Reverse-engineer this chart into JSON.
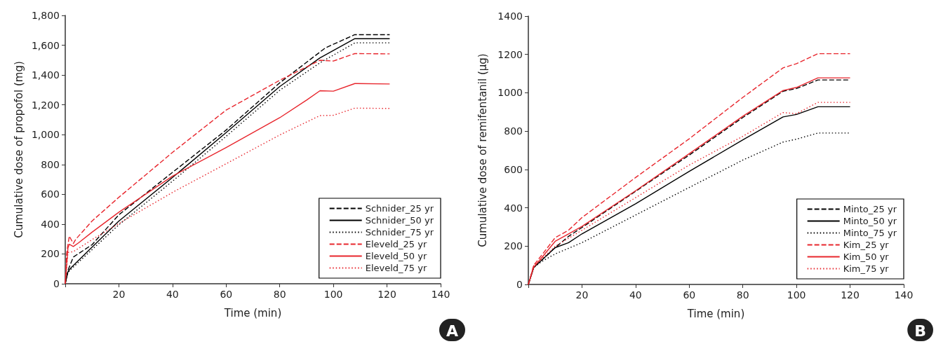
{
  "chart_data": [
    {
      "type": "line",
      "xlabel": "Time (min)",
      "ylabel": "Cumulative dose of propofol (mg)",
      "annotations": [
        "A"
      ],
      "xlim": [
        0,
        140
      ],
      "xticks": [
        {
          "value": 0,
          "label": null
        },
        20,
        40,
        60,
        80,
        100,
        120,
        140
      ],
      "ylim": [
        0,
        1800
      ],
      "yticks": [
        0,
        200,
        400,
        600,
        800,
        {
          "value": 1000,
          "label": "1,000"
        },
        {
          "value": 1200,
          "label": "1,200"
        },
        {
          "value": 1400,
          "label": "1,400"
        },
        {
          "value": 1600,
          "label": "1,600"
        },
        {
          "value": 1800,
          "label": "1,800"
        }
      ],
      "grid": false,
      "legend": "bottom right",
      "marker": "none",
      "series": [
        {
          "name": "Schnider_25 yr",
          "color": "#000000",
          "line_style": "dashed",
          "x": [
            0,
            1,
            3,
            10,
            20,
            40,
            60,
            80,
            97,
            108,
            121
          ],
          "values": [
            0,
            90,
            179,
            262,
            463,
            747,
            1031,
            1348,
            1582,
            1671,
            1671
          ]
        },
        {
          "name": "Schnider_50 yr",
          "color": "#000000",
          "line_style": "solid",
          "x": [
            0,
            1,
            2,
            10,
            20,
            40,
            60,
            80,
            95,
            108,
            121
          ],
          "values": [
            0,
            80,
            104,
            246,
            421,
            713,
            1014,
            1323,
            1515,
            1644,
            1644
          ]
        },
        {
          "name": "Schnider_75 yr",
          "color": "#000000",
          "line_style": "dotted",
          "x": [
            0,
            1,
            2,
            10,
            20,
            40,
            60,
            80,
            95,
            108,
            121
          ],
          "values": [
            0,
            75,
            95,
            229,
            396,
            688,
            989,
            1298,
            1482,
            1616,
            1616
          ]
        },
        {
          "name": "Eleveld_25 yr",
          "color": "#e8262d",
          "line_style": "dashed",
          "x": [
            0,
            0.5,
            1.5,
            3,
            4,
            10,
            20,
            40,
            60,
            80,
            95,
            100,
            108,
            121
          ],
          "values": [
            0,
            200,
            320,
            270,
            300,
            421,
            580,
            881,
            1165,
            1365,
            1499,
            1494,
            1544,
            1542
          ]
        },
        {
          "name": "Eleveld_50 yr",
          "color": "#e8262d",
          "line_style": "solid",
          "x": [
            0,
            1,
            1.5,
            3,
            5,
            10,
            20,
            40,
            60,
            80,
            90,
            95,
            100,
            108,
            121
          ],
          "values": [
            0,
            240,
            265,
            250,
            275,
            346,
            480,
            722,
            914,
            1114,
            1232,
            1295,
            1292,
            1343,
            1340
          ]
        },
        {
          "name": "Eleveld_75 yr",
          "color": "#e8262d",
          "line_style": "dotted",
          "x": [
            0,
            1,
            3,
            10,
            20,
            40,
            60,
            80,
            95,
            100,
            108,
            121
          ],
          "values": [
            0,
            210,
            215,
            296,
            404,
            613,
            805,
            998,
            1128,
            1130,
            1178,
            1176
          ]
        }
      ]
    },
    {
      "type": "line",
      "xlabel": "Time (min)",
      "ylabel": "Cumulative dose of remifentanil (μg)",
      "annotations": [
        "B"
      ],
      "xlim": [
        0,
        140
      ],
      "xticks": [
        {
          "value": 0,
          "label": null
        },
        20,
        40,
        60,
        80,
        100,
        120,
        140
      ],
      "ylim": [
        0,
        1400
      ],
      "yticks": [
        0,
        200,
        400,
        600,
        800,
        1000,
        1200,
        1400
      ],
      "grid": false,
      "legend": "bottom right",
      "marker": "none",
      "series": [
        {
          "name": "Minto_25 yr",
          "color": "#000000",
          "line_style": "dashed",
          "x": [
            0,
            2,
            5,
            10,
            15,
            20,
            40,
            60,
            80,
            95,
            100,
            108,
            120
          ],
          "values": [
            0,
            90,
            127,
            192,
            251,
            297,
            486,
            675,
            871,
            1008,
            1022,
            1067,
            1067
          ]
        },
        {
          "name": "Minto_50 yr",
          "color": "#000000",
          "line_style": "solid",
          "x": [
            0,
            2,
            5,
            10,
            15,
            20,
            40,
            60,
            80,
            95,
            100,
            108,
            120
          ],
          "values": [
            0,
            88,
            127,
            192,
            218,
            264,
            421,
            590,
            754,
            874,
            887,
            927,
            927
          ]
        },
        {
          "name": "Minto_75 yr",
          "color": "#000000",
          "line_style": "dotted",
          "x": [
            0,
            2,
            5,
            10,
            20,
            40,
            60,
            80,
            95,
            100,
            108,
            120
          ],
          "values": [
            0,
            88,
            120,
            159,
            218,
            362,
            506,
            649,
            743,
            758,
            790,
            790
          ]
        },
        {
          "name": "Kim_25 yr",
          "color": "#e8262d",
          "line_style": "dashed",
          "x": [
            0,
            2,
            5,
            10,
            15,
            20,
            40,
            60,
            80,
            95,
            100,
            108,
            120
          ],
          "values": [
            0,
            100,
            153,
            244,
            283,
            349,
            558,
            760,
            976,
            1130,
            1152,
            1204,
            1204
          ]
        },
        {
          "name": "Kim_50 yr",
          "color": "#e8262d",
          "line_style": "solid",
          "x": [
            0,
            2,
            5,
            10,
            15,
            20,
            40,
            60,
            80,
            95,
            100,
            108,
            120
          ],
          "values": [
            0,
            90,
            140,
            225,
            264,
            303,
            489,
            682,
            878,
            1012,
            1028,
            1078,
            1078
          ]
        },
        {
          "name": "Kim_75 yr",
          "color": "#e8262d",
          "line_style": "dotted",
          "x": [
            0,
            2,
            5,
            10,
            20,
            40,
            60,
            80,
            95,
            100,
            108,
            120
          ],
          "values": [
            0,
            98,
            133,
            199,
            283,
            453,
            623,
            773,
            897,
            891,
            950,
            950
          ]
        }
      ]
    }
  ]
}
